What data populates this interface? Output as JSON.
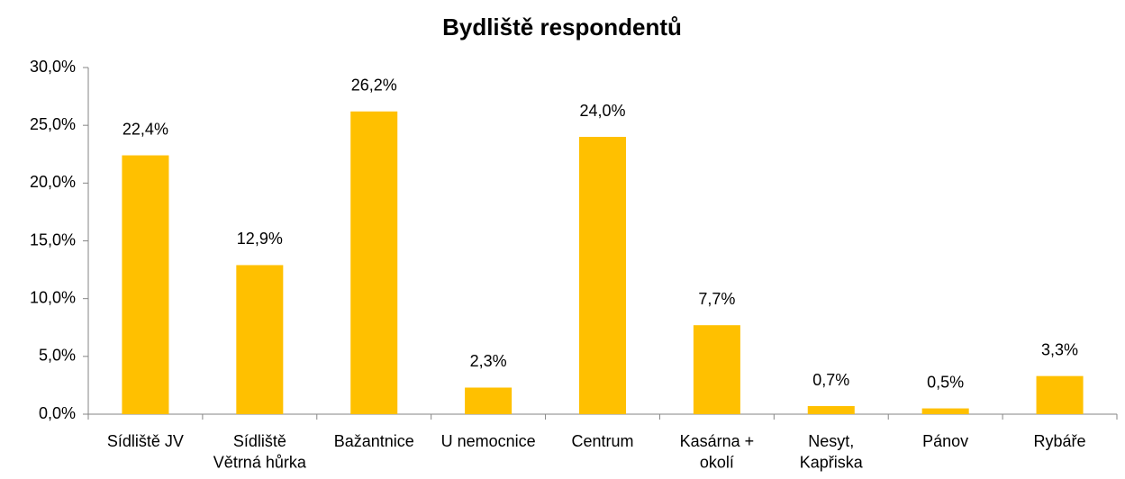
{
  "chart_data": {
    "type": "bar",
    "title": "Bydliště respondentů",
    "categories": [
      "Sídliště JV",
      "Sídliště\nVětrná hůrka",
      "Bažantnice",
      "U nemocnice",
      "Centrum",
      "Kasárna +\nokolí",
      "Nesyt,\nKapřiska",
      "Pánov",
      "Rybáře"
    ],
    "values": [
      22.4,
      12.9,
      26.2,
      2.3,
      24.0,
      7.7,
      0.7,
      0.5,
      3.3
    ],
    "value_labels": [
      "22,4%",
      "12,9%",
      "26,2%",
      "2,3%",
      "24,0%",
      "7,7%",
      "0,7%",
      "0,5%",
      "3,3%"
    ],
    "color": "#ffc000",
    "ylim": [
      0,
      30
    ],
    "yticks": [
      {
        "value": 0,
        "label": "0,0%"
      },
      {
        "value": 5,
        "label": "5,0%"
      },
      {
        "value": 10,
        "label": "10,0%"
      },
      {
        "value": 15,
        "label": "15,0%"
      },
      {
        "value": 20,
        "label": "20,0%"
      },
      {
        "value": 25,
        "label": "25,0%"
      },
      {
        "value": 30,
        "label": "30,0%"
      }
    ],
    "grid": false
  }
}
